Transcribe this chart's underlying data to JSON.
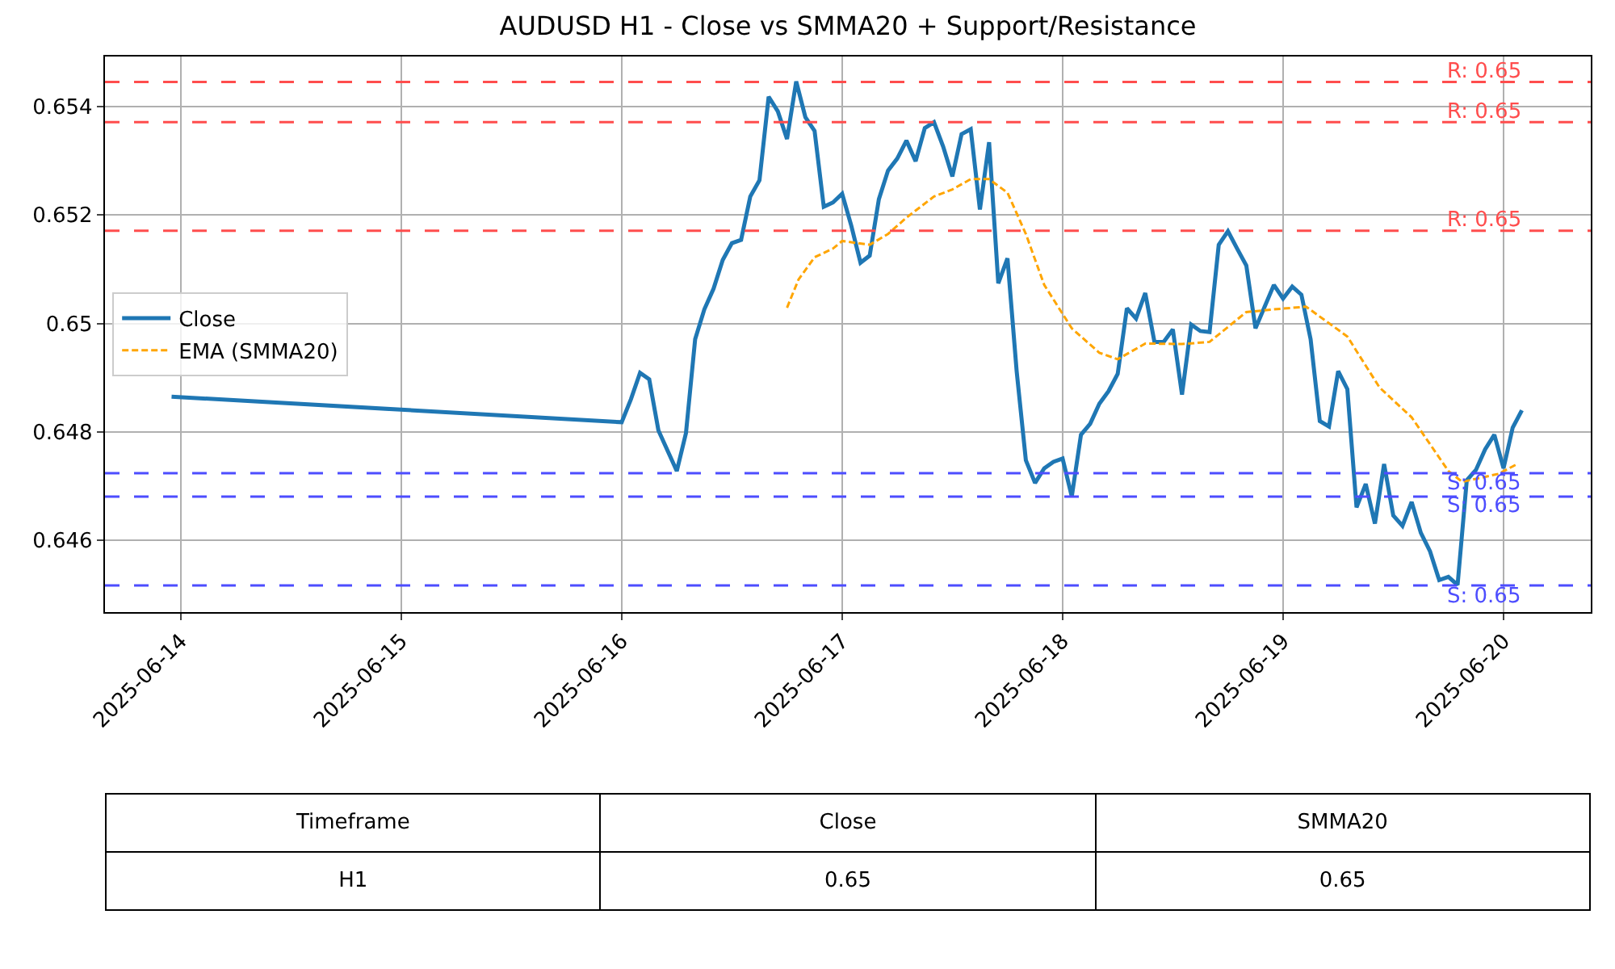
{
  "chart_data": {
    "type": "line",
    "title": "AUDUSD H1 - Close vs SMMA20 + Support/Resistance",
    "series": [
      {
        "name": "Close",
        "color": "#1f77b4",
        "line_style": "solid",
        "x": [
          "2025-06-13T23:00",
          "2025-06-16T00:00",
          "2025-06-16T01:00",
          "2025-06-16T02:00",
          "2025-06-16T03:00",
          "2025-06-16T04:00",
          "2025-06-16T06:00",
          "2025-06-16T07:00",
          "2025-06-16T08:00",
          "2025-06-16T09:00",
          "2025-06-16T10:00",
          "2025-06-16T11:00",
          "2025-06-16T12:00",
          "2025-06-16T13:00",
          "2025-06-16T14:00",
          "2025-06-16T15:00",
          "2025-06-16T16:00",
          "2025-06-16T17:00",
          "2025-06-16T18:00",
          "2025-06-16T19:00",
          "2025-06-16T20:00",
          "2025-06-16T21:00",
          "2025-06-16T22:00",
          "2025-06-16T23:00",
          "2025-06-17T00:00",
          "2025-06-17T01:00",
          "2025-06-17T02:00",
          "2025-06-17T03:00",
          "2025-06-17T04:00",
          "2025-06-17T05:00",
          "2025-06-17T06:00",
          "2025-06-17T07:00",
          "2025-06-17T08:00",
          "2025-06-17T09:00",
          "2025-06-17T10:00",
          "2025-06-17T11:00",
          "2025-06-17T12:00",
          "2025-06-17T13:00",
          "2025-06-17T14:00",
          "2025-06-17T15:00",
          "2025-06-17T16:00",
          "2025-06-17T17:00",
          "2025-06-17T18:00",
          "2025-06-17T19:00",
          "2025-06-17T20:00",
          "2025-06-17T21:00",
          "2025-06-17T22:00",
          "2025-06-17T23:00",
          "2025-06-18T00:00",
          "2025-06-18T01:00",
          "2025-06-18T02:00",
          "2025-06-18T03:00",
          "2025-06-18T04:00",
          "2025-06-18T05:00",
          "2025-06-18T06:00",
          "2025-06-18T07:00",
          "2025-06-18T08:00",
          "2025-06-18T09:00",
          "2025-06-18T10:00",
          "2025-06-18T11:00",
          "2025-06-18T12:00",
          "2025-06-18T13:00",
          "2025-06-18T14:00",
          "2025-06-18T15:00",
          "2025-06-18T16:00",
          "2025-06-18T17:00",
          "2025-06-18T18:00",
          "2025-06-18T19:00",
          "2025-06-18T20:00",
          "2025-06-18T21:00",
          "2025-06-18T22:00",
          "2025-06-18T23:00",
          "2025-06-19T00:00",
          "2025-06-19T01:00",
          "2025-06-19T02:00",
          "2025-06-19T03:00",
          "2025-06-19T04:00",
          "2025-06-19T05:00",
          "2025-06-19T06:00",
          "2025-06-19T07:00",
          "2025-06-19T08:00",
          "2025-06-19T09:00",
          "2025-06-19T10:00",
          "2025-06-19T11:00",
          "2025-06-19T12:00",
          "2025-06-19T13:00",
          "2025-06-19T14:00",
          "2025-06-19T15:00",
          "2025-06-19T16:00",
          "2025-06-19T17:00",
          "2025-06-19T18:00",
          "2025-06-19T19:00",
          "2025-06-19T20:00",
          "2025-06-19T21:00",
          "2025-06-19T22:00",
          "2025-06-19T23:00",
          "2025-06-20T00:00",
          "2025-06-20T01:00",
          "2025-06-20T02:00"
        ],
        "values": [
          0.64865,
          0.64818,
          0.6486,
          0.64909,
          0.64897,
          0.64803,
          0.64728,
          0.64798,
          0.64971,
          0.65026,
          0.65064,
          0.65117,
          0.65148,
          0.65154,
          0.65234,
          0.65264,
          0.65418,
          0.65391,
          0.6534,
          0.65446,
          0.6538,
          0.65355,
          0.65215,
          0.65223,
          0.65239,
          0.6518,
          0.65112,
          0.65125,
          0.65229,
          0.65282,
          0.65304,
          0.65337,
          0.65299,
          0.6536,
          0.65371,
          0.65326,
          0.65271,
          0.65349,
          0.65358,
          0.6521,
          0.65334,
          0.65074,
          0.6512,
          0.64912,
          0.64748,
          0.64706,
          0.64733,
          0.64745,
          0.64751,
          0.64681,
          0.64795,
          0.64815,
          0.64852,
          0.64875,
          0.64907,
          0.65028,
          0.65009,
          0.65056,
          0.64966,
          0.64966,
          0.64989,
          0.64869,
          0.64998,
          0.64986,
          0.64984,
          0.65145,
          0.6517,
          0.65138,
          0.65107,
          0.64991,
          0.65031,
          0.65071,
          0.65046,
          0.65068,
          0.65053,
          0.64971,
          0.6482,
          0.6481,
          0.64912,
          0.64879,
          0.64661,
          0.64704,
          0.64631,
          0.64741,
          0.64646,
          0.64627,
          0.64671,
          0.64614,
          0.6458,
          0.64527,
          0.64533,
          0.64518,
          0.64711,
          0.6473,
          0.64768,
          0.64795,
          0.64733,
          0.64808,
          0.6484
        ]
      },
      {
        "name": "EMA (SMMA20)",
        "color": "#ffa500",
        "line_style": "dashed",
        "x": [
          "2025-06-16T18:00",
          "2025-06-16T19:15",
          "2025-06-16T21:00",
          "2025-06-16T23:00",
          "2025-06-17T00:00",
          "2025-06-17T03:00",
          "2025-06-17T05:00",
          "2025-06-17T07:00",
          "2025-06-17T10:00",
          "2025-06-17T12:00",
          "2025-06-17T14:00",
          "2025-06-17T16:00",
          "2025-06-17T18:00",
          "2025-06-17T20:00",
          "2025-06-17T22:00",
          "2025-06-18T01:00",
          "2025-06-18T04:00",
          "2025-06-18T06:00",
          "2025-06-18T09:00",
          "2025-06-18T13:00",
          "2025-06-18T16:00",
          "2025-06-18T20:00",
          "2025-06-18T23:00",
          "2025-06-19T02:30",
          "2025-06-19T07:00",
          "2025-06-19T10:30",
          "2025-06-19T14:00",
          "2025-06-19T18:00",
          "2025-06-19T19:30",
          "2025-06-19T23:30",
          "2025-06-20T01:30"
        ],
        "values": [
          0.65029,
          0.65081,
          0.65122,
          0.65138,
          0.65152,
          0.65145,
          0.65165,
          0.65195,
          0.65234,
          0.65247,
          0.65266,
          0.65266,
          0.65241,
          0.65165,
          0.65071,
          0.64991,
          0.64946,
          0.64934,
          0.64963,
          0.64962,
          0.64966,
          0.65021,
          0.65026,
          0.65031,
          0.64976,
          0.64882,
          0.64827,
          0.64728,
          0.64708,
          0.64723,
          0.64741
        ]
      }
    ],
    "xlim": [
      "2025-06-13T15:45",
      "2025-06-20T09:30"
    ],
    "xticks": [
      "2025-06-14",
      "2025-06-15",
      "2025-06-16",
      "2025-06-17",
      "2025-06-18",
      "2025-06-19",
      "2025-06-20"
    ],
    "ylim": [
      0.64468,
      0.65492
    ],
    "yticks": [
      0.646,
      0.648,
      0.65,
      0.652,
      0.654
    ],
    "ref_lines": [
      {
        "axis": "y",
        "value": 0.65445,
        "label": "R: 0.65",
        "color": "#ff4d4d",
        "line_style": "dashed"
      },
      {
        "axis": "y",
        "value": 0.65371,
        "label": "R: 0.65",
        "color": "#ff4d4d",
        "line_style": "dashed"
      },
      {
        "axis": "y",
        "value": 0.65171,
        "label": "R: 0.65",
        "color": "#ff4d4d",
        "line_style": "dashed"
      },
      {
        "axis": "y",
        "value": 0.64724,
        "label": "S: 0.65",
        "color": "#4d4dff",
        "line_style": "dashed"
      },
      {
        "axis": "y",
        "value": 0.64681,
        "label": "S: 0.65",
        "color": "#4d4dff",
        "line_style": "dashed"
      },
      {
        "axis": "y",
        "value": 0.64517,
        "label": "S: 0.65",
        "color": "#4d4dff",
        "line_style": "dashed"
      }
    ],
    "annotations": [
      "Timeframe",
      "Close",
      "SMMA20",
      "H1",
      "0.65",
      "0.65"
    ],
    "grid": true,
    "legend": "left",
    "marker": "none"
  }
}
